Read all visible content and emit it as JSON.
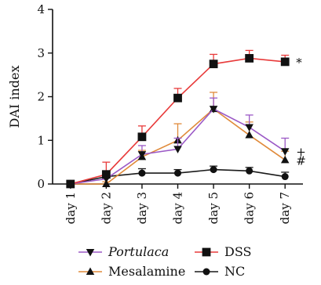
{
  "chart_data": {
    "type": "line",
    "ylabel": "DAI index",
    "ylim": [
      0,
      4
    ],
    "yticks": [
      "0",
      "1",
      "2",
      "3",
      "4"
    ],
    "categories": [
      "day 1",
      "day 2",
      "day 3",
      "day 4",
      "day 5",
      "day 6",
      "day 7"
    ],
    "series": [
      {
        "name": "Portulaca",
        "italic": true,
        "color": "#9b59c6",
        "marker": "triangle-down",
        "values": [
          0,
          0.12,
          0.68,
          0.8,
          1.72,
          1.3,
          0.75
        ],
        "errors": [
          0,
          0.15,
          0.2,
          0.25,
          0.25,
          0.28,
          0.3
        ]
      },
      {
        "name": "Mesalamine",
        "italic": false,
        "color": "#e08a3a",
        "marker": "triangle-up",
        "values": [
          0,
          0,
          0.62,
          1.0,
          1.72,
          1.12,
          0.55
        ],
        "errors": [
          0,
          0.05,
          0.15,
          0.38,
          0.38,
          0.3,
          0.2
        ]
      },
      {
        "name": "DSS",
        "italic": false,
        "color": "#e83a3a",
        "marker": "square",
        "values": [
          0,
          0.22,
          1.08,
          1.97,
          2.75,
          2.88,
          2.8
        ],
        "errors": [
          0,
          0.28,
          0.25,
          0.22,
          0.22,
          0.18,
          0.15
        ]
      },
      {
        "name": "NC",
        "italic": false,
        "color": "#1a1a1a",
        "marker": "circle",
        "values": [
          0,
          0.17,
          0.25,
          0.25,
          0.33,
          0.3,
          0.17
        ],
        "errors": [
          0,
          0.08,
          0.1,
          0.08,
          0.08,
          0.08,
          0.1
        ]
      }
    ],
    "annotations": [
      {
        "text": "*",
        "series": "DSS"
      },
      {
        "text": "+",
        "series": "Portulaca"
      },
      {
        "text": "#",
        "series": "Mesalamine"
      }
    ],
    "legend_position": "bottom",
    "grid": false
  }
}
